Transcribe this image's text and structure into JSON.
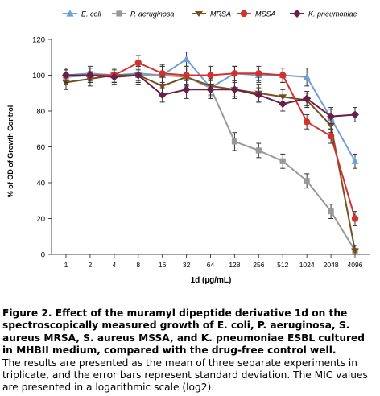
{
  "chart_data": {
    "type": "line",
    "title": "",
    "xlabel": "1d (µg/mL)",
    "ylabel": "% of OD of Growth Control",
    "x_scale": "log2",
    "categories": [
      "1",
      "2",
      "4",
      "8",
      "16",
      "32",
      "64",
      "128",
      "256",
      "512",
      "1024",
      "2048",
      "4096"
    ],
    "ylim": [
      0,
      120
    ],
    "yticks": [
      0,
      20,
      40,
      60,
      80,
      100,
      120
    ],
    "grid": false,
    "legend_position": "top",
    "series": [
      {
        "name": "E. coli",
        "color": "#6f9fd8",
        "marker": "triangle",
        "values": [
          100,
          101,
          100,
          101,
          100,
          109,
          93,
          101,
          100,
          100,
          99,
          76,
          52
        ],
        "errors": [
          3,
          4,
          4,
          4,
          5,
          4,
          6,
          4,
          4,
          4,
          5,
          6,
          4
        ]
      },
      {
        "name": "P. aeruginosa",
        "color": "#999999",
        "marker": "square",
        "values": [
          99,
          100,
          100,
          100,
          100,
          99,
          93,
          63,
          58,
          52,
          41,
          24,
          2
        ],
        "errors": [
          4,
          4,
          4,
          5,
          5,
          5,
          5,
          5,
          4,
          4,
          4,
          4,
          3
        ]
      },
      {
        "name": "MRSA",
        "color": "#7a4e23",
        "marker": "star",
        "values": [
          96,
          98,
          100,
          100,
          94,
          99,
          94,
          92,
          90,
          88,
          86,
          72,
          2
        ],
        "errors": [
          4,
          4,
          4,
          4,
          5,
          5,
          5,
          5,
          5,
          4,
          4,
          4,
          3
        ]
      },
      {
        "name": "MSSA",
        "color": "#d2322d",
        "marker": "circle",
        "values": [
          100,
          100,
          100,
          107,
          101,
          100,
          100,
          101,
          101,
          100,
          74,
          66,
          20
        ],
        "errors": [
          4,
          4,
          4,
          4,
          5,
          5,
          5,
          4,
          4,
          4,
          4,
          4,
          4
        ]
      },
      {
        "name": "K. pneumoniae",
        "color": "#6a1f4a",
        "marker": "diamond",
        "values": [
          100,
          100,
          99,
          100,
          89,
          92,
          92,
          92,
          89,
          84,
          87,
          77,
          78
        ],
        "errors": [
          4,
          4,
          4,
          4,
          4,
          5,
          5,
          4,
          4,
          4,
          4,
          4,
          4
        ]
      }
    ]
  },
  "caption": {
    "heading": "Figure 2. Effect of the muramyl dipeptide derivative 1d on the spectroscopically measured growth of E. coli, P. aeruginosa, S. aureus MRSA, S. aureus MSSA, and K. pneumoniae ESBL cultured in MHBII medium, compared with the drug-free control well.",
    "body": "The results are presented as the mean of three separate experiments in triplicate, and the error bars represent standard deviation. The MIC values are presented in a logarithmic scale (log2)."
  }
}
